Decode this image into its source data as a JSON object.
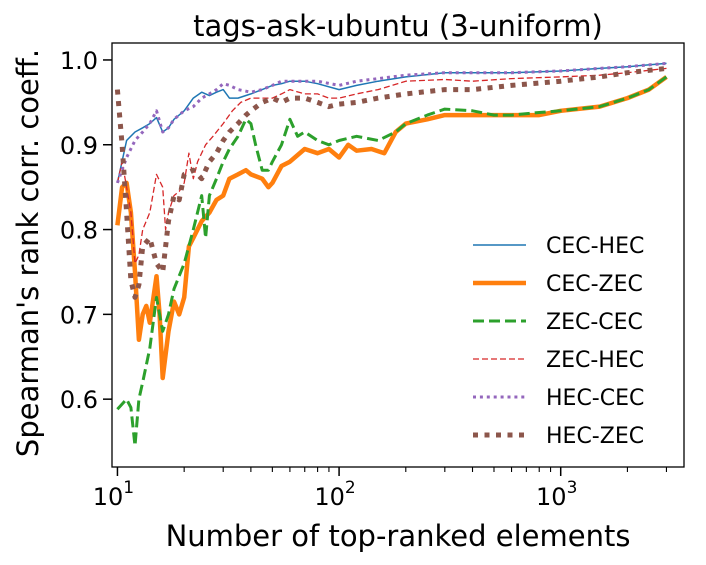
{
  "chart_data": {
    "type": "line",
    "title": "tags-ask-ubuntu (3-uniform)",
    "xlabel": "Number of top-ranked elements",
    "ylabel": "Spearman's rank corr. coeff.",
    "xscale": "log",
    "xlim": [
      10,
      3000
    ],
    "ylim": [
      0.52,
      1.02
    ],
    "xticks": [
      {
        "value": 10,
        "label": "10",
        "exp": "1"
      },
      {
        "value": 100,
        "label": "10",
        "exp": "2"
      },
      {
        "value": 1000,
        "label": "10",
        "exp": "3"
      }
    ],
    "yticks": [
      0.6,
      0.7,
      0.8,
      0.9,
      1.0
    ],
    "ytick_labels": [
      "0.6",
      "0.7",
      "0.8",
      "0.9",
      "1.0"
    ],
    "legend_position": "lower-right",
    "series": [
      {
        "name": "CEC-HEC",
        "color": "#1f77b4",
        "style": "solid",
        "width": 1.5,
        "points": [
          [
            10,
            0.855
          ],
          [
            11,
            0.905
          ],
          [
            12,
            0.915
          ],
          [
            13,
            0.92
          ],
          [
            14,
            0.925
          ],
          [
            15,
            0.932
          ],
          [
            16,
            0.915
          ],
          [
            17,
            0.92
          ],
          [
            18,
            0.93
          ],
          [
            20,
            0.94
          ],
          [
            22,
            0.955
          ],
          [
            24,
            0.962
          ],
          [
            26,
            0.958
          ],
          [
            28,
            0.962
          ],
          [
            30,
            0.965
          ],
          [
            32,
            0.955
          ],
          [
            35,
            0.955
          ],
          [
            40,
            0.96
          ],
          [
            45,
            0.965
          ],
          [
            50,
            0.97
          ],
          [
            55,
            0.972
          ],
          [
            60,
            0.975
          ],
          [
            70,
            0.975
          ],
          [
            80,
            0.972
          ],
          [
            100,
            0.965
          ],
          [
            120,
            0.97
          ],
          [
            150,
            0.975
          ],
          [
            200,
            0.98
          ],
          [
            300,
            0.985
          ],
          [
            400,
            0.985
          ],
          [
            600,
            0.985
          ],
          [
            1000,
            0.987
          ],
          [
            1500,
            0.99
          ],
          [
            2000,
            0.992
          ],
          [
            3000,
            0.996
          ]
        ]
      },
      {
        "name": "CEC-ZEC",
        "color": "#ff7f0e",
        "style": "solid",
        "width": 4.5,
        "points": [
          [
            10,
            0.805
          ],
          [
            10.5,
            0.85
          ],
          [
            11,
            0.855
          ],
          [
            11.5,
            0.82
          ],
          [
            12,
            0.75
          ],
          [
            12.5,
            0.67
          ],
          [
            13,
            0.7
          ],
          [
            13.5,
            0.71
          ],
          [
            14,
            0.69
          ],
          [
            15,
            0.745
          ],
          [
            15.5,
            0.7
          ],
          [
            16,
            0.625
          ],
          [
            17,
            0.68
          ],
          [
            18,
            0.715
          ],
          [
            19,
            0.7
          ],
          [
            20,
            0.72
          ],
          [
            21,
            0.78
          ],
          [
            22,
            0.79
          ],
          [
            24,
            0.81
          ],
          [
            26,
            0.82
          ],
          [
            28,
            0.835
          ],
          [
            30,
            0.84
          ],
          [
            32,
            0.86
          ],
          [
            35,
            0.865
          ],
          [
            38,
            0.87
          ],
          [
            40,
            0.865
          ],
          [
            45,
            0.86
          ],
          [
            48,
            0.85
          ],
          [
            50,
            0.855
          ],
          [
            55,
            0.875
          ],
          [
            60,
            0.88
          ],
          [
            70,
            0.895
          ],
          [
            80,
            0.89
          ],
          [
            90,
            0.895
          ],
          [
            100,
            0.885
          ],
          [
            110,
            0.9
          ],
          [
            120,
            0.893
          ],
          [
            140,
            0.895
          ],
          [
            160,
            0.89
          ],
          [
            180,
            0.915
          ],
          [
            200,
            0.925
          ],
          [
            250,
            0.93
          ],
          [
            300,
            0.935
          ],
          [
            400,
            0.935
          ],
          [
            500,
            0.935
          ],
          [
            600,
            0.935
          ],
          [
            800,
            0.935
          ],
          [
            1000,
            0.94
          ],
          [
            1500,
            0.945
          ],
          [
            2000,
            0.955
          ],
          [
            2500,
            0.965
          ],
          [
            3000,
            0.98
          ]
        ]
      },
      {
        "name": "ZEC-CEC",
        "color": "#2ca02c",
        "style": "dashed",
        "width": 3,
        "points": [
          [
            10,
            0.588
          ],
          [
            11,
            0.6
          ],
          [
            11.5,
            0.59
          ],
          [
            12,
            0.545
          ],
          [
            12.5,
            0.6
          ],
          [
            13,
            0.62
          ],
          [
            14,
            0.66
          ],
          [
            15,
            0.72
          ],
          [
            16,
            0.68
          ],
          [
            17,
            0.7
          ],
          [
            18,
            0.73
          ],
          [
            20,
            0.76
          ],
          [
            22,
            0.8
          ],
          [
            24,
            0.84
          ],
          [
            25,
            0.79
          ],
          [
            26,
            0.84
          ],
          [
            28,
            0.86
          ],
          [
            30,
            0.88
          ],
          [
            32,
            0.895
          ],
          [
            35,
            0.91
          ],
          [
            38,
            0.93
          ],
          [
            40,
            0.925
          ],
          [
            42,
            0.9
          ],
          [
            45,
            0.87
          ],
          [
            48,
            0.87
          ],
          [
            50,
            0.88
          ],
          [
            55,
            0.9
          ],
          [
            60,
            0.93
          ],
          [
            65,
            0.91
          ],
          [
            70,
            0.915
          ],
          [
            80,
            0.905
          ],
          [
            90,
            0.9
          ],
          [
            100,
            0.905
          ],
          [
            120,
            0.91
          ],
          [
            150,
            0.905
          ],
          [
            180,
            0.915
          ],
          [
            200,
            0.925
          ],
          [
            250,
            0.935
          ],
          [
            300,
            0.942
          ],
          [
            400,
            0.94
          ],
          [
            500,
            0.935
          ],
          [
            600,
            0.935
          ],
          [
            800,
            0.938
          ],
          [
            1000,
            0.94
          ],
          [
            1500,
            0.945
          ],
          [
            2000,
            0.955
          ],
          [
            2500,
            0.965
          ],
          [
            3000,
            0.98
          ]
        ]
      },
      {
        "name": "ZEC-HEC",
        "color": "#d62728",
        "style": "dashed-thin",
        "width": 1.3,
        "points": [
          [
            10,
            0.855
          ],
          [
            10.5,
            0.88
          ],
          [
            11,
            0.85
          ],
          [
            11.5,
            0.82
          ],
          [
            12,
            0.76
          ],
          [
            12.5,
            0.77
          ],
          [
            13,
            0.8
          ],
          [
            14,
            0.82
          ],
          [
            15,
            0.865
          ],
          [
            16,
            0.85
          ],
          [
            16.5,
            0.8
          ],
          [
            17,
            0.82
          ],
          [
            18,
            0.84
          ],
          [
            19,
            0.845
          ],
          [
            20,
            0.855
          ],
          [
            21,
            0.89
          ],
          [
            22,
            0.86
          ],
          [
            23,
            0.88
          ],
          [
            25,
            0.9
          ],
          [
            27,
            0.91
          ],
          [
            30,
            0.925
          ],
          [
            33,
            0.94
          ],
          [
            36,
            0.95
          ],
          [
            40,
            0.955
          ],
          [
            45,
            0.955
          ],
          [
            50,
            0.955
          ],
          [
            55,
            0.96
          ],
          [
            60,
            0.965
          ],
          [
            70,
            0.96
          ],
          [
            80,
            0.96
          ],
          [
            90,
            0.955
          ],
          [
            100,
            0.955
          ],
          [
            120,
            0.96
          ],
          [
            150,
            0.965
          ],
          [
            200,
            0.975
          ],
          [
            300,
            0.977
          ],
          [
            400,
            0.975
          ],
          [
            600,
            0.978
          ],
          [
            1000,
            0.98
          ],
          [
            1500,
            0.982
          ],
          [
            2000,
            0.985
          ],
          [
            3000,
            0.99
          ]
        ]
      },
      {
        "name": "HEC-CEC",
        "color": "#9467bd",
        "style": "dotted",
        "width": 3,
        "points": [
          [
            10,
            0.855
          ],
          [
            11,
            0.885
          ],
          [
            12,
            0.905
          ],
          [
            13,
            0.915
          ],
          [
            14,
            0.925
          ],
          [
            15,
            0.94
          ],
          [
            16,
            0.915
          ],
          [
            17,
            0.92
          ],
          [
            18,
            0.93
          ],
          [
            20,
            0.94
          ],
          [
            22,
            0.945
          ],
          [
            24,
            0.955
          ],
          [
            26,
            0.96
          ],
          [
            28,
            0.965
          ],
          [
            30,
            0.972
          ],
          [
            32,
            0.97
          ],
          [
            35,
            0.965
          ],
          [
            40,
            0.962
          ],
          [
            45,
            0.965
          ],
          [
            50,
            0.97
          ],
          [
            55,
            0.975
          ],
          [
            60,
            0.975
          ],
          [
            70,
            0.975
          ],
          [
            80,
            0.975
          ],
          [
            100,
            0.97
          ],
          [
            120,
            0.975
          ],
          [
            150,
            0.978
          ],
          [
            200,
            0.982
          ],
          [
            300,
            0.985
          ],
          [
            400,
            0.985
          ],
          [
            600,
            0.985
          ],
          [
            1000,
            0.987
          ],
          [
            1500,
            0.99
          ],
          [
            2000,
            0.992
          ],
          [
            3000,
            0.996
          ]
        ]
      },
      {
        "name": "HEC-ZEC",
        "color": "#8c564b",
        "style": "dotted",
        "width": 5,
        "points": [
          [
            10,
            0.965
          ],
          [
            10.5,
            0.9
          ],
          [
            11,
            0.82
          ],
          [
            11.5,
            0.74
          ],
          [
            12,
            0.72
          ],
          [
            12.5,
            0.735
          ],
          [
            13,
            0.78
          ],
          [
            14,
            0.79
          ],
          [
            15,
            0.76
          ],
          [
            16,
            0.75
          ],
          [
            17,
            0.81
          ],
          [
            18,
            0.84
          ],
          [
            19,
            0.835
          ],
          [
            20,
            0.865
          ],
          [
            22,
            0.87
          ],
          [
            24,
            0.86
          ],
          [
            26,
            0.88
          ],
          [
            28,
            0.89
          ],
          [
            30,
            0.905
          ],
          [
            32,
            0.915
          ],
          [
            35,
            0.925
          ],
          [
            38,
            0.935
          ],
          [
            40,
            0.94
          ],
          [
            45,
            0.95
          ],
          [
            50,
            0.955
          ],
          [
            55,
            0.95
          ],
          [
            60,
            0.955
          ],
          [
            70,
            0.955
          ],
          [
            80,
            0.95
          ],
          [
            90,
            0.945
          ],
          [
            100,
            0.948
          ],
          [
            120,
            0.95
          ],
          [
            150,
            0.955
          ],
          [
            200,
            0.96
          ],
          [
            300,
            0.965
          ],
          [
            400,
            0.965
          ],
          [
            600,
            0.97
          ],
          [
            1000,
            0.975
          ],
          [
            1500,
            0.98
          ],
          [
            2000,
            0.985
          ],
          [
            3000,
            0.99
          ]
        ]
      }
    ]
  }
}
